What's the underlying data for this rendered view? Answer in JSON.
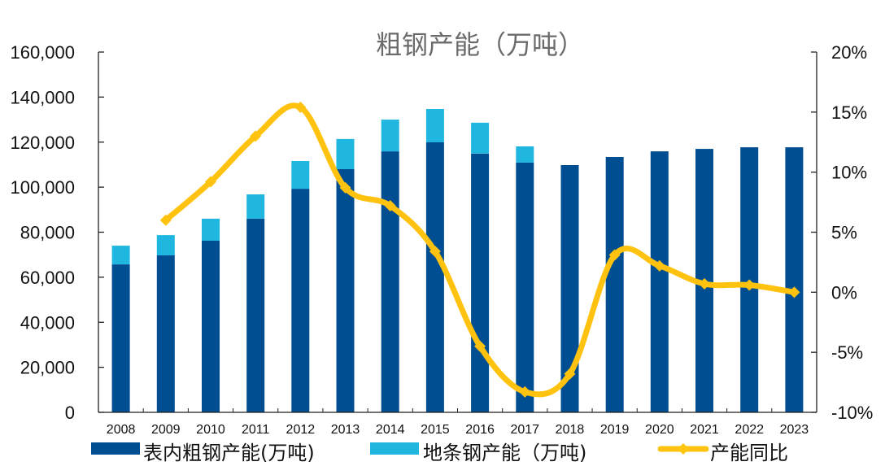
{
  "chart_data": {
    "type": "bar",
    "title": "粗钢产能（万吨）",
    "categories": [
      "2008",
      "2009",
      "2010",
      "2011",
      "2012",
      "2013",
      "2014",
      "2015",
      "2016",
      "2017",
      "2018",
      "2019",
      "2020",
      "2021",
      "2022",
      "2023"
    ],
    "series": [
      {
        "name": "表内粗钢产能(万吨)",
        "type": "bar",
        "stack": "total",
        "axis": "left",
        "color": "#004E92",
        "values": [
          65700,
          69700,
          76200,
          86000,
          99300,
          108000,
          115900,
          119900,
          114900,
          110900,
          109800,
          113400,
          115900,
          117000,
          117700,
          117700
        ]
      },
      {
        "name": "地条钢产能（万吨)",
        "type": "bar",
        "stack": "total",
        "axis": "left",
        "color": "#1FB7E0",
        "values": [
          8300,
          9000,
          9800,
          10800,
          12300,
          13400,
          14100,
          14800,
          13700,
          7200,
          0,
          0,
          0,
          0,
          0,
          0
        ]
      },
      {
        "name": "产能同比",
        "type": "line",
        "axis": "right",
        "color": "#FFC20E",
        "values": [
          null,
          6.0,
          9.2,
          13.0,
          15.4,
          8.7,
          7.2,
          3.4,
          -4.5,
          -8.3,
          -6.8,
          3.1,
          2.2,
          0.7,
          0.6,
          0.0
        ]
      }
    ],
    "left_axis": {
      "ylim": [
        0,
        160000
      ],
      "ticks": [
        0,
        20000,
        40000,
        60000,
        80000,
        100000,
        120000,
        140000,
        160000
      ],
      "tick_labels": [
        "0",
        "20,000",
        "40,000",
        "60,000",
        "80,000",
        "100,000",
        "120,000",
        "140,000",
        "160,000"
      ]
    },
    "right_axis": {
      "ylim": [
        -10,
        20
      ],
      "ticks": [
        -10,
        -5,
        0,
        5,
        10,
        15,
        20
      ],
      "tick_labels": [
        "-10%",
        "-5%",
        "0%",
        "5%",
        "10%",
        "15%",
        "20%"
      ]
    },
    "legend": {
      "position": "bottom",
      "labels": [
        "表内粗钢产能(万吨)",
        "地条钢产能（万吨)",
        "产能同比"
      ]
    },
    "grid": false
  }
}
